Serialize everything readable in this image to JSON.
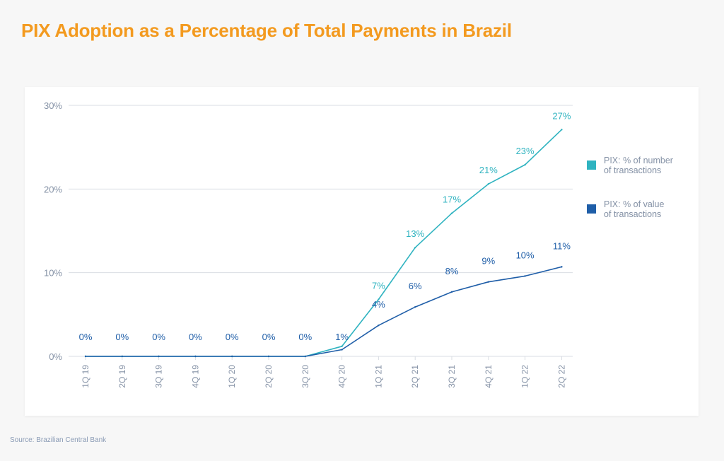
{
  "title": "PIX Adoption as a Percentage of Total Payments in Brazil",
  "source": "Source: Brazilian Central Bank",
  "colors": {
    "title": "#f39a1f",
    "series_count": "#2fb3c0",
    "series_value": "#1f5ea8",
    "axis_text": "#8592a6",
    "grid": "#d9dde3"
  },
  "chart_data": {
    "type": "line",
    "title": "PIX Adoption as a Percentage of Total Payments in Brazil",
    "xlabel": "",
    "ylabel": "",
    "ylim": [
      0,
      30
    ],
    "yticks": [
      0,
      10,
      20,
      30
    ],
    "ytick_labels": [
      "0%",
      "10%",
      "20%",
      "30%"
    ],
    "grid": true,
    "legend_position": "right",
    "categories": [
      "1Q 19",
      "2Q 19",
      "3Q 19",
      "4Q 19",
      "1Q 20",
      "2Q 20",
      "3Q 20",
      "4Q 20",
      "1Q 21",
      "2Q 21",
      "3Q 21",
      "4Q 21",
      "1Q 22",
      "2Q 22"
    ],
    "series": [
      {
        "name": "PIX: % of number of transactions",
        "legend_lines": [
          "PIX: % of number",
          "of transactions"
        ],
        "color": "#2fb3c0",
        "values": [
          0,
          0,
          0,
          0,
          0,
          0,
          0,
          1.2,
          6.8,
          13,
          17.1,
          20.6,
          22.9,
          27.1
        ],
        "labels": [
          "",
          "",
          "",
          "",
          "",
          "",
          "",
          "",
          "7%",
          "13%",
          "17%",
          "21%",
          "23%",
          "27%"
        ]
      },
      {
        "name": "PIX: % of value of transactions",
        "legend_lines": [
          "PIX: % of value",
          "of transactions"
        ],
        "color": "#1f5ea8",
        "values": [
          0,
          0,
          0,
          0,
          0,
          0,
          0,
          0.8,
          3.7,
          5.9,
          7.7,
          8.9,
          9.6,
          10.7
        ],
        "labels": [
          "0%",
          "0%",
          "0%",
          "0%",
          "0%",
          "0%",
          "0%",
          "1%",
          "4%",
          "6%",
          "8%",
          "9%",
          "10%",
          "11%"
        ]
      }
    ]
  }
}
